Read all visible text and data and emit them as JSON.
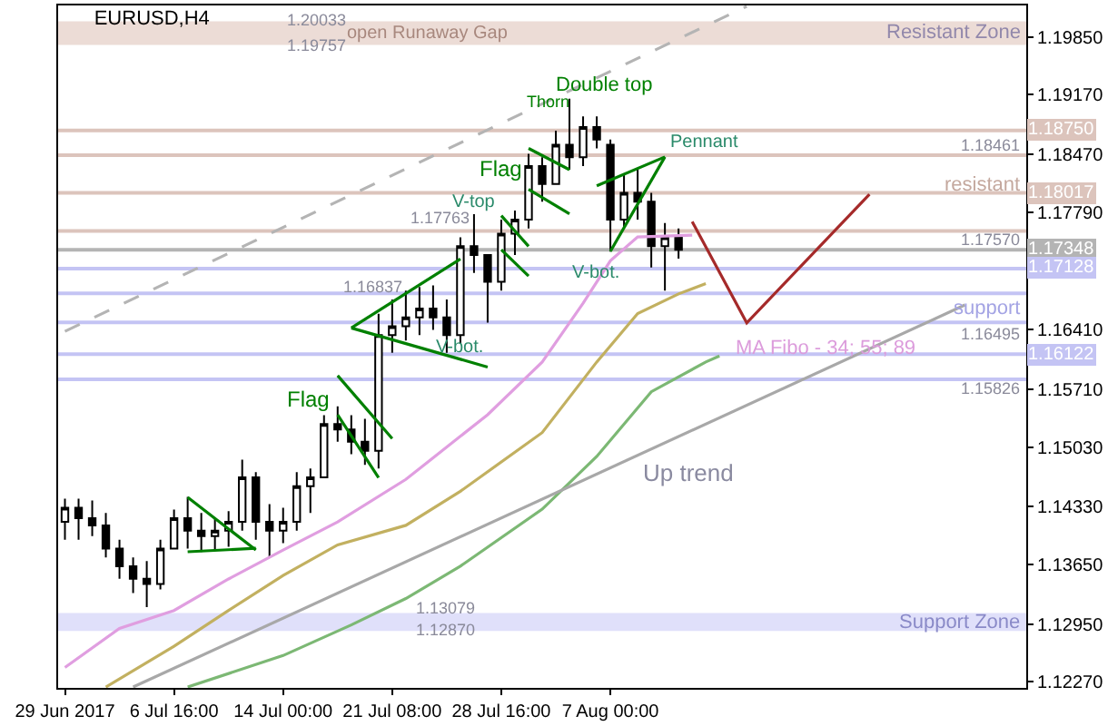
{
  "chart_data": {
    "type": "candlestick",
    "title": "EURUSD,H4",
    "categories": [
      "29 Jun 2017",
      null,
      null,
      null,
      null,
      null,
      null,
      null,
      "6 Jul 16:00",
      null,
      null,
      null,
      null,
      null,
      null,
      null,
      "14 Jul 00:00",
      null,
      null,
      null,
      null,
      null,
      null,
      null,
      "21 Jul 08:00",
      null,
      null,
      null,
      null,
      null,
      null,
      null,
      "28 Jul 16:00",
      null,
      null,
      null,
      null,
      null,
      null,
      null,
      "7 Aug 00:00",
      null,
      null,
      null,
      null,
      null,
      null,
      null,
      null,
      null,
      null,
      null,
      null,
      null,
      null,
      null,
      null,
      null,
      null,
      null,
      null,
      null,
      null,
      null,
      null,
      null,
      null,
      null,
      null,
      null,
      null
    ],
    "ylim": [
      1.122,
      1.2022
    ],
    "yticks": [
      {
        "value": 1.1227,
        "label": "1.12270"
      },
      {
        "value": 1.1295,
        "label": "1.12950"
      },
      {
        "value": 1.1365,
        "label": "1.13650"
      },
      {
        "value": 1.1433,
        "label": "1.14330"
      },
      {
        "value": 1.1503,
        "label": "1.15030"
      },
      {
        "value": 1.1571,
        "label": "1.15710"
      },
      {
        "value": 1.1641,
        "label": "1.16410"
      },
      {
        "value": 1.1779,
        "label": "1.17790"
      },
      {
        "value": 1.1847,
        "label": "1.18470"
      },
      {
        "value": 1.1917,
        "label": "1.19170"
      },
      {
        "value": 1.1985,
        "label": "1.19850"
      }
    ],
    "grid": false,
    "series": [
      {
        "color": "#000000",
        "ohlc": [
          [
            1.14151,
            1.14423,
            1.13942,
            1.14318
          ],
          [
            1.14318,
            1.14423,
            1.13942,
            1.14193
          ],
          [
            1.14193,
            1.14402,
            1.13984,
            1.14109
          ],
          [
            1.14109,
            1.14256,
            1.13733,
            1.13838
          ],
          [
            1.13838,
            1.13942,
            1.13482,
            1.13629
          ],
          [
            1.13629,
            1.13733,
            1.13315,
            1.13482
          ],
          [
            1.13482,
            1.13691,
            1.13148,
            1.1342
          ],
          [
            1.1342,
            1.13942,
            1.13357,
            1.13838
          ],
          [
            1.13838,
            1.14297,
            1.13838,
            1.14193
          ],
          [
            1.14193,
            1.14444,
            1.13838,
            1.14047
          ],
          [
            1.14047,
            1.14256,
            1.13796,
            1.13984
          ],
          [
            1.13984,
            1.14193,
            1.13817,
            1.14047
          ],
          [
            1.14047,
            1.14276,
            1.13858,
            1.14151
          ],
          [
            1.14151,
            1.14883,
            1.14047,
            1.14674
          ],
          [
            1.14674,
            1.14736,
            1.13942,
            1.14151
          ],
          [
            1.14151,
            1.1436,
            1.13733,
            1.14047
          ],
          [
            1.14047,
            1.14318,
            1.139,
            1.14151
          ],
          [
            1.14151,
            1.14736,
            1.14047,
            1.14569
          ],
          [
            1.14569,
            1.14778,
            1.14256,
            1.14674
          ],
          [
            1.14674,
            1.15405,
            1.14674,
            1.15301
          ],
          [
            1.15301,
            1.1551,
            1.15092,
            1.15238
          ],
          [
            1.15238,
            1.15405,
            1.14945,
            1.15092
          ],
          [
            1.15092,
            1.15363,
            1.1482,
            1.14987
          ],
          [
            1.14987,
            1.16596,
            1.14778,
            1.16346
          ],
          [
            1.16346,
            1.16764,
            1.16137,
            1.1645
          ],
          [
            1.1645,
            1.16868,
            1.16283,
            1.16555
          ],
          [
            1.16555,
            1.1691,
            1.16346,
            1.16659
          ],
          [
            1.16659,
            1.16931,
            1.16408,
            1.16555
          ],
          [
            1.16555,
            1.16764,
            1.16137,
            1.16346
          ],
          [
            1.16346,
            1.17495,
            1.16241,
            1.17391
          ],
          [
            1.17391,
            1.17767,
            1.17077,
            1.17286
          ],
          [
            1.17286,
            1.17286,
            1.16492,
            1.16973
          ],
          [
            1.16973,
            1.17704,
            1.16868,
            1.17537
          ],
          [
            1.17537,
            1.17809,
            1.17286,
            1.17704
          ],
          [
            1.17704,
            1.18477,
            1.176,
            1.18331
          ],
          [
            1.18331,
            1.18436,
            1.17913,
            1.18122
          ],
          [
            1.18122,
            1.18749,
            1.18122,
            1.18582
          ],
          [
            1.18582,
            1.19125,
            1.18289,
            1.18436
          ],
          [
            1.18436,
            1.18916,
            1.18331,
            1.18791
          ],
          [
            1.18791,
            1.18916,
            1.1854,
            1.18645
          ],
          [
            1.18582,
            1.18645,
            1.17328,
            1.17704
          ],
          [
            1.17704,
            1.18227,
            1.176,
            1.18018
          ],
          [
            1.18018,
            1.18289,
            1.17704,
            1.17913
          ],
          [
            1.17913,
            1.18018,
            1.1714,
            1.17391
          ],
          [
            1.17391,
            1.17662,
            1.16868,
            1.17495
          ],
          [
            1.17495,
            1.176,
            1.17244,
            1.17349
          ],
          null,
          null,
          null,
          null,
          null,
          null,
          null,
          null,
          null,
          null,
          null,
          null,
          null,
          null,
          null,
          null,
          null,
          null,
          null,
          null,
          null,
          null,
          null,
          null,
          null
        ]
      },
      {
        "type": "line",
        "color": "#e09ee0",
        "values": [
          1.1244,
          null,
          null,
          null,
          1.129,
          null,
          null,
          null,
          1.1311,
          null,
          null,
          null,
          1.1348,
          null,
          null,
          null,
          1.1382,
          null,
          null,
          null,
          1.1415,
          null,
          null,
          null,
          null,
          1.1465,
          null,
          null,
          null,
          null,
          null,
          1.1541,
          null,
          null,
          null,
          1.1603,
          null,
          null,
          1.1672,
          null,
          1.1722,
          null,
          1.175,
          null,
          null,
          null,
          1.1752,
          null,
          null,
          null,
          null,
          null,
          null,
          null,
          null,
          null,
          null,
          null,
          null,
          null,
          null,
          null,
          null,
          null,
          null,
          null,
          null,
          null,
          null,
          null,
          null
        ]
      },
      {
        "type": "line",
        "color": "#c2b060",
        "values": [
          null,
          null,
          null,
          1.1221,
          null,
          null,
          null,
          null,
          1.1269,
          null,
          null,
          null,
          1.1311,
          null,
          null,
          null,
          1.1352,
          null,
          null,
          null,
          1.1388,
          null,
          null,
          null,
          null,
          1.1411,
          null,
          null,
          null,
          1.1451,
          null,
          null,
          null,
          null,
          null,
          1.152,
          null,
          null,
          null,
          1.1603,
          null,
          null,
          1.166,
          null,
          null,
          1.1683,
          null,
          1.1695,
          null,
          null,
          null,
          null,
          null,
          null,
          null,
          null,
          null,
          null,
          null,
          null,
          null,
          null,
          null,
          null,
          null,
          null,
          null,
          null,
          null,
          null,
          null
        ]
      },
      {
        "type": "line",
        "color": "#7cb874",
        "values": [
          null,
          null,
          null,
          null,
          null,
          null,
          null,
          null,
          null,
          1.1221,
          null,
          null,
          null,
          null,
          null,
          null,
          1.1258,
          null,
          null,
          null,
          null,
          1.1294,
          null,
          null,
          null,
          1.1325,
          null,
          null,
          null,
          1.1363,
          null,
          null,
          null,
          null,
          null,
          1.143,
          null,
          null,
          null,
          1.1492,
          null,
          null,
          null,
          1.1568,
          null,
          null,
          null,
          1.1603,
          1.161,
          null,
          null,
          null,
          null,
          null,
          null,
          null,
          null,
          null,
          null,
          null,
          null,
          null,
          null,
          null,
          null,
          null,
          null,
          null,
          null,
          null,
          null
        ]
      },
      {
        "type": "line",
        "color": "#a8a8a8",
        "values": [
          null,
          null,
          null,
          null,
          null,
          1.1221,
          null,
          null,
          null,
          null,
          null,
          null,
          null,
          null,
          null,
          null,
          null,
          null,
          null,
          null,
          null,
          null,
          null,
          null,
          null,
          null,
          null,
          null,
          null,
          null,
          null,
          null,
          null,
          null,
          null,
          null,
          null,
          null,
          null,
          null,
          null,
          null,
          null,
          null,
          null,
          null,
          null,
          null,
          null,
          null,
          null,
          null,
          null,
          null,
          null,
          null,
          null,
          null,
          null,
          null,
          null,
          null,
          null,
          null,
          null,
          null,
          1.167,
          null,
          null,
          null,
          null
        ]
      },
      {
        "type": "line",
        "color": "#b4b4b4",
        "line_style": "dashed",
        "values": [
          1.1639,
          null,
          null,
          null,
          null,
          null,
          null,
          null,
          null,
          null,
          null,
          null,
          null,
          null,
          null,
          null,
          null,
          null,
          null,
          null,
          null,
          null,
          null,
          null,
          null,
          null,
          null,
          null,
          null,
          null,
          null,
          null,
          null,
          null,
          null,
          null,
          null,
          null,
          null,
          null,
          null,
          null,
          null,
          null,
          null,
          null,
          null,
          null,
          null,
          null,
          1.2021,
          null,
          null,
          null,
          null,
          null,
          null,
          null,
          null,
          null,
          null,
          null,
          null,
          null,
          null,
          null,
          null,
          null,
          null,
          null,
          null
        ]
      },
      {
        "type": "line",
        "color": "#a52a2a",
        "values": [
          null,
          null,
          null,
          null,
          null,
          null,
          null,
          null,
          null,
          null,
          null,
          null,
          null,
          null,
          null,
          null,
          null,
          null,
          null,
          null,
          null,
          null,
          null,
          null,
          null,
          null,
          null,
          null,
          null,
          null,
          null,
          null,
          null,
          null,
          null,
          null,
          null,
          null,
          null,
          null,
          null,
          null,
          null,
          null,
          null,
          null,
          1.1768,
          null,
          null,
          null,
          1.1649,
          null,
          null,
          null,
          null,
          null,
          null,
          null,
          null,
          1.18,
          null,
          null,
          null,
          null,
          null,
          null,
          null,
          null,
          null,
          null,
          null
        ]
      },
      {
        "type": "line",
        "color": "#008000",
        "values": [
          null,
          null,
          null,
          null,
          null,
          null,
          null,
          null,
          null,
          1.1444,
          null,
          null,
          null,
          null,
          1.1382,
          null,
          null,
          null,
          null,
          null,
          null,
          null,
          null,
          null,
          null,
          null,
          null,
          null,
          null,
          null,
          null,
          null,
          null,
          null,
          null,
          null,
          null,
          null,
          null,
          null,
          null,
          null,
          null,
          null,
          null,
          null,
          null,
          null,
          null,
          null,
          null,
          null,
          null,
          null,
          null,
          null,
          null,
          null,
          null,
          null,
          null,
          null,
          null,
          null,
          null,
          null,
          null,
          null,
          null,
          null,
          null
        ]
      },
      {
        "type": "line",
        "color": "#008000",
        "values": [
          null,
          null,
          null,
          null,
          null,
          null,
          null,
          null,
          null,
          1.138,
          null,
          null,
          null,
          null,
          1.1384,
          null,
          null,
          null,
          null,
          null,
          null,
          null,
          null,
          null,
          null,
          null,
          null,
          null,
          null,
          null,
          null,
          null,
          null,
          null,
          null,
          null,
          null,
          null,
          null,
          null,
          null,
          null,
          null,
          null,
          null,
          null,
          null,
          null,
          null,
          null,
          null,
          null,
          null,
          null,
          null,
          null,
          null,
          null,
          null,
          null,
          null,
          null,
          null,
          null,
          null,
          null,
          null,
          null,
          null,
          null,
          null
        ]
      },
      {
        "type": "line",
        "color": "#008000",
        "values": [
          null,
          null,
          null,
          null,
          null,
          null,
          null,
          null,
          null,
          null,
          null,
          null,
          null,
          null,
          null,
          null,
          null,
          null,
          null,
          null,
          1.1587,
          null,
          null,
          null,
          1.1513,
          null,
          null,
          null,
          null,
          null,
          null,
          null,
          null,
          null,
          null,
          null,
          null,
          null,
          null,
          null,
          null,
          null,
          null,
          null,
          null,
          null,
          null,
          null,
          null,
          null,
          null,
          null,
          null,
          null,
          null,
          null,
          null,
          null,
          null,
          null,
          null,
          null,
          null,
          null,
          null,
          null,
          null,
          null,
          null,
          null,
          null
        ]
      },
      {
        "type": "line",
        "color": "#008000",
        "values": [
          null,
          null,
          null,
          null,
          null,
          null,
          null,
          null,
          null,
          null,
          null,
          null,
          null,
          null,
          null,
          null,
          null,
          null,
          null,
          null,
          1.1541,
          null,
          null,
          1.1467,
          null,
          null,
          null,
          null,
          null,
          null,
          null,
          null,
          null,
          null,
          null,
          null,
          null,
          null,
          null,
          null,
          null,
          null,
          null,
          null,
          null,
          null,
          null,
          null,
          null,
          null,
          null,
          null,
          null,
          null,
          null,
          null,
          null,
          null,
          null,
          null,
          null,
          null,
          null,
          null,
          null,
          null,
          null,
          null,
          null,
          null,
          null
        ]
      },
      {
        "type": "line",
        "color": "#008000",
        "values": [
          null,
          null,
          null,
          null,
          null,
          null,
          null,
          null,
          null,
          null,
          null,
          null,
          null,
          null,
          null,
          null,
          null,
          null,
          null,
          null,
          null,
          1.1643,
          null,
          null,
          null,
          null,
          null,
          null,
          null,
          1.1724,
          null,
          null,
          null,
          null,
          null,
          null,
          null,
          null,
          null,
          null,
          null,
          null,
          null,
          null,
          null,
          null,
          null,
          null,
          null,
          null,
          null,
          null,
          null,
          null,
          null,
          null,
          null,
          null,
          null,
          null,
          null,
          null,
          null,
          null,
          null,
          null,
          null,
          null,
          null,
          null,
          null
        ]
      },
      {
        "type": "line",
        "color": "#008000",
        "values": [
          null,
          null,
          null,
          null,
          null,
          null,
          null,
          null,
          null,
          null,
          null,
          null,
          null,
          null,
          null,
          null,
          null,
          null,
          null,
          null,
          null,
          1.1643,
          null,
          null,
          null,
          null,
          null,
          null,
          null,
          null,
          null,
          1.1597,
          null,
          null,
          null,
          null,
          null,
          null,
          null,
          null,
          null,
          null,
          null,
          null,
          null,
          null,
          null,
          null,
          null,
          null,
          null,
          null,
          null,
          null,
          null,
          null,
          null,
          null,
          null,
          null,
          null,
          null,
          null,
          null,
          null,
          null,
          null,
          null,
          null,
          null,
          null
        ]
      },
      {
        "type": "line",
        "color": "#008000",
        "values": [
          null,
          null,
          null,
          null,
          null,
          null,
          null,
          null,
          null,
          null,
          null,
          null,
          null,
          null,
          null,
          null,
          null,
          null,
          null,
          null,
          null,
          null,
          null,
          null,
          null,
          null,
          null,
          null,
          null,
          null,
          null,
          null,
          1.1775,
          null,
          1.1739,
          null,
          null,
          null,
          null,
          null,
          null,
          null,
          null,
          null,
          null,
          null,
          null,
          null,
          null,
          null,
          null,
          null,
          null,
          null,
          null,
          null,
          null,
          null,
          null,
          null,
          null,
          null,
          null,
          null,
          null,
          null,
          null,
          null,
          null,
          null,
          null
        ]
      },
      {
        "type": "line",
        "color": "#008000",
        "values": [
          null,
          null,
          null,
          null,
          null,
          null,
          null,
          null,
          null,
          null,
          null,
          null,
          null,
          null,
          null,
          null,
          null,
          null,
          null,
          null,
          null,
          null,
          null,
          null,
          null,
          null,
          null,
          null,
          null,
          null,
          null,
          null,
          1.1735,
          null,
          1.1704,
          null,
          null,
          null,
          null,
          null,
          null,
          null,
          null,
          null,
          null,
          null,
          null,
          null,
          null,
          null,
          null,
          null,
          null,
          null,
          null,
          null,
          null,
          null,
          null,
          null,
          null,
          null,
          null,
          null,
          null,
          null,
          null,
          null,
          null,
          null,
          null
        ]
      },
      {
        "type": "line",
        "color": "#008000",
        "values": [
          null,
          null,
          null,
          null,
          null,
          null,
          null,
          null,
          null,
          null,
          null,
          null,
          null,
          null,
          null,
          null,
          null,
          null,
          null,
          null,
          null,
          null,
          null,
          null,
          null,
          null,
          null,
          null,
          null,
          null,
          null,
          null,
          null,
          null,
          1.1854,
          null,
          null,
          1.1829,
          null,
          null,
          null,
          null,
          null,
          null,
          null,
          null,
          null,
          null,
          null,
          null,
          null,
          null,
          null,
          null,
          null,
          null,
          null,
          null,
          null,
          null,
          null,
          null,
          null,
          null,
          null,
          null,
          null,
          null,
          null,
          null,
          null
        ]
      },
      {
        "type": "line",
        "color": "#008000",
        "values": [
          null,
          null,
          null,
          null,
          null,
          null,
          null,
          null,
          null,
          null,
          null,
          null,
          null,
          null,
          null,
          null,
          null,
          null,
          null,
          null,
          null,
          null,
          null,
          null,
          null,
          null,
          null,
          null,
          null,
          null,
          null,
          null,
          null,
          null,
          1.1806,
          null,
          null,
          1.1777,
          null,
          null,
          null,
          null,
          null,
          null,
          null,
          null,
          null,
          null,
          null,
          null,
          null,
          null,
          null,
          null,
          null,
          null,
          null,
          null,
          null,
          null,
          null,
          null,
          null,
          null,
          null,
          null,
          null,
          null,
          null,
          null,
          null
        ]
      },
      {
        "type": "line",
        "color": "#008000",
        "values": [
          null,
          null,
          null,
          null,
          null,
          null,
          null,
          null,
          null,
          null,
          null,
          null,
          null,
          null,
          null,
          null,
          null,
          null,
          null,
          null,
          null,
          null,
          null,
          null,
          null,
          null,
          null,
          null,
          null,
          null,
          null,
          null,
          null,
          null,
          null,
          null,
          null,
          null,
          null,
          1.181,
          null,
          null,
          null,
          null,
          1.1844,
          null,
          null,
          null,
          null,
          null,
          null,
          null,
          null,
          null,
          null,
          null,
          null,
          null,
          null,
          null,
          null,
          null,
          null,
          null,
          null,
          null,
          null,
          null,
          null,
          null,
          null
        ]
      },
      {
        "type": "line",
        "color": "#008000",
        "values": [
          null,
          null,
          null,
          null,
          null,
          null,
          null,
          null,
          null,
          null,
          null,
          null,
          null,
          null,
          null,
          null,
          null,
          null,
          null,
          null,
          null,
          null,
          null,
          null,
          null,
          null,
          null,
          null,
          null,
          null,
          null,
          null,
          null,
          null,
          null,
          null,
          null,
          null,
          null,
          null,
          1.1733,
          null,
          null,
          null,
          1.1844,
          null,
          null,
          null,
          null,
          null,
          null,
          null,
          null,
          null,
          null,
          null,
          null,
          null,
          null,
          null,
          null,
          null,
          null,
          null,
          null,
          null,
          null,
          null,
          null,
          null,
          null
        ]
      }
    ],
    "ref_lines": [
      {
        "axis": "y",
        "value": 1.1875,
        "label": "1.18750",
        "color": "#dcc4bc"
      },
      {
        "axis": "y",
        "value": 1.18461,
        "color": "#dcc4bc"
      },
      {
        "axis": "y",
        "value": 1.18017,
        "label": "1.18017",
        "color": "#dcc4bc"
      },
      {
        "axis": "y",
        "value": 1.1757,
        "color": "#dcc4bc"
      },
      {
        "axis": "y",
        "value": 1.17348,
        "label": "1.17348",
        "color": "#b4b4b4"
      },
      {
        "axis": "y",
        "value": 1.17128,
        "label": "1.17128",
        "color": "#c4c4f4"
      },
      {
        "axis": "y",
        "value": 1.16837,
        "color": "#c4c4f4"
      },
      {
        "axis": "y",
        "value": 1.16495,
        "color": "#c4c4f4"
      },
      {
        "axis": "y",
        "value": 1.16122,
        "label": "1.16122",
        "color": "#c4c4f4"
      },
      {
        "axis": "y",
        "value": 1.15826,
        "color": "#c4c4f4"
      }
    ],
    "bands": [
      {
        "axis": "y",
        "from": 1.19757,
        "to": 1.20033,
        "label": "Resistant Zone",
        "color": "#ecdcd6"
      },
      {
        "axis": "y",
        "from": 1.1287,
        "to": 1.13079,
        "label": "Support Zone",
        "color": "#e0e0fa"
      }
    ],
    "annotations": [
      "1.20033",
      "1.19757",
      "open Runaway Gap",
      "Double top",
      "Thorn",
      {
        "text": "Pennant",
        "y": 1.1844
      },
      "Flag",
      "V-top",
      "1.17763",
      "Flag",
      "1.16837",
      {
        "text": "V-bot.",
        "y": 1.1643
      },
      {
        "text": "V-bot.",
        "y": 1.1733
      },
      "1.18461",
      "resistant",
      "1.17570",
      "support",
      "MA Fibo - 34; 55; 89",
      "1.16495",
      "1.15826",
      "Up trend",
      "1.13079",
      "1.12870"
    ]
  }
}
